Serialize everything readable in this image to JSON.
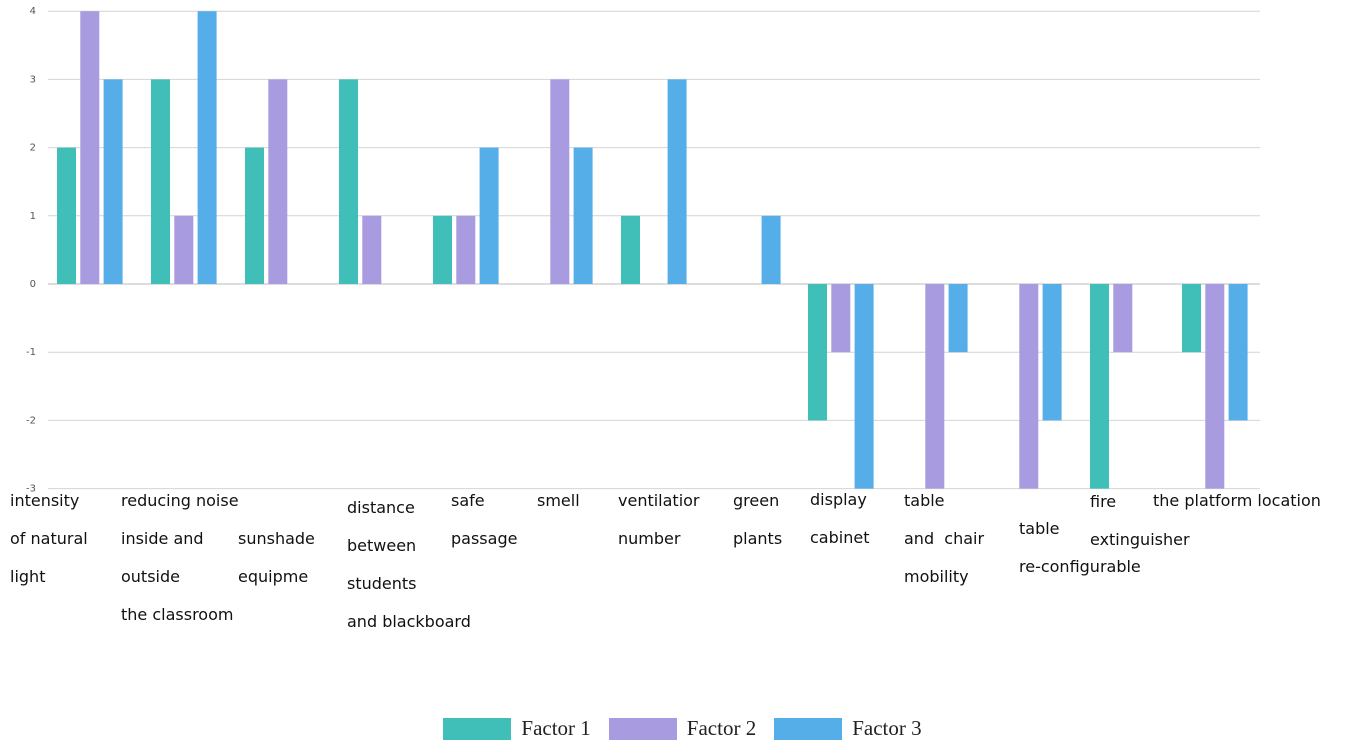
{
  "chart_data": {
    "type": "bar",
    "categories": [
      "intensity\nof natural\nlight",
      "reducing noise\ninside and\noutside\nthe classroom",
      "sunshade\nequipme",
      "distance\nbetween\nstudents\nand blackboard",
      "safe\npassage",
      "smell",
      "ventilatior\nnumber",
      "green\nplants",
      "display\ncabinet",
      "table\nand  chair\nmobility",
      "table\nre-configurable",
      "fire\nextinguisher",
      "the platform location"
    ],
    "series": [
      {
        "name": "Factor 1",
        "color": "#3fbfb7",
        "values": [
          2,
          3,
          2,
          3,
          1,
          0,
          1,
          0,
          -2,
          0,
          0,
          -3,
          -1
        ]
      },
      {
        "name": "Factor 2",
        "color": "#a99be0",
        "values": [
          4,
          1,
          3,
          1,
          1,
          3,
          0,
          0,
          -1,
          -3,
          -3,
          -1,
          -3
        ]
      },
      {
        "name": "Factor 3",
        "color": "#56aee8",
        "values": [
          3,
          4,
          0,
          0,
          2,
          2,
          3,
          1,
          -3,
          -1,
          -2,
          0,
          -2
        ]
      }
    ],
    "yticks": [
      "4",
      "3",
      "2",
      "1",
      "0",
      "-1",
      "-2",
      "-3"
    ],
    "ylim": [
      -3,
      4
    ],
    "grid": true,
    "legend_position": "bottom-center",
    "title": "",
    "xlabel": "",
    "ylabel": ""
  }
}
